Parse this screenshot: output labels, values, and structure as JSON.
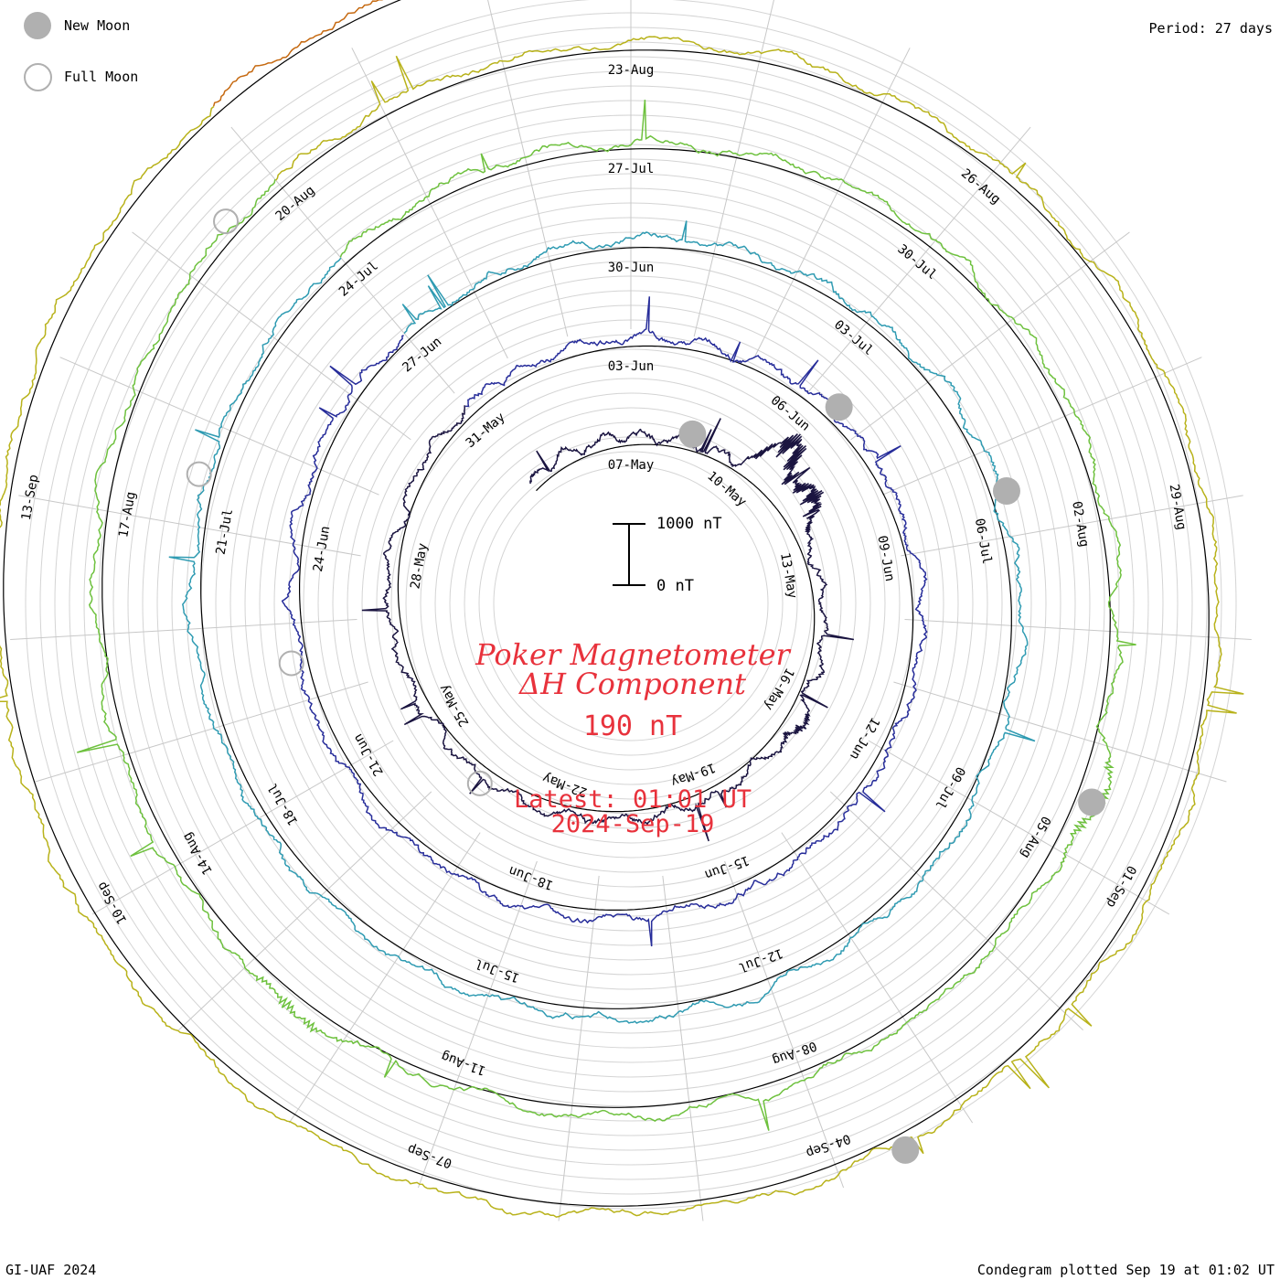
{
  "legend": {
    "new_moon": {
      "label": "New Moon",
      "icon": "new-moon-icon",
      "color": "#b0b0b0"
    },
    "full_moon": {
      "label": "Full Moon",
      "icon": "full-moon-icon",
      "color": "#b0b0b0"
    }
  },
  "period_text": "Period: 27 days",
  "footer": {
    "credit": "GI-UAF 2024",
    "plotted": "Condegram plotted Sep 19 at 01:02 UT"
  },
  "title": {
    "line1": "Poker Magnetometer",
    "line2": "ΔH Component",
    "scale_value": "190 nT",
    "latest_time": "Latest: 01:01 UT",
    "latest_date": "2024-Sep-19",
    "color": "#e8323c"
  },
  "scale_bar": {
    "top_label": "1000 nT",
    "bottom_label": "0 nT"
  },
  "chart_data": {
    "type": "line",
    "subtype": "condegram (spiral, 27-day period)",
    "period_days": 27,
    "quantity": "ΔH Component",
    "unit": "nT",
    "date_range": [
      "2024-05-04",
      "2024-09-19"
    ],
    "date_labels": [
      "07-May",
      "10-May",
      "13-May",
      "16-May",
      "19-May",
      "22-May",
      "25-May",
      "28-May",
      "31-May",
      "03-Jun",
      "06-Jun",
      "09-Jun",
      "12-Jun",
      "15-Jun",
      "18-Jun",
      "21-Jun",
      "24-Jun",
      "27-Jun",
      "30-Jun",
      "03-Jul",
      "06-Jul",
      "09-Jul",
      "12-Jul",
      "15-Jul",
      "18-Jul",
      "21-Jul",
      "24-Jul",
      "27-Jul",
      "30-Jul",
      "02-Aug",
      "05-Aug",
      "08-Aug",
      "11-Aug",
      "14-Aug",
      "17-Aug",
      "20-Aug",
      "23-Aug",
      "26-Aug",
      "29-Aug",
      "01-Sep",
      "04-Sep",
      "07-Sep",
      "10-Sep",
      "13-Sep"
    ],
    "new_moons": [
      "2024-05-08",
      "2024-06-06",
      "2024-07-05",
      "2024-08-04",
      "2024-09-03"
    ],
    "full_moons": [
      "2024-05-23",
      "2024-06-22",
      "2024-07-21",
      "2024-08-19",
      "2024-09-18"
    ],
    "storm_events": [
      {
        "date": "2024-05-10",
        "peak_nT": 1000
      },
      {
        "date": "2024-05-11",
        "peak_nT": 700
      },
      {
        "date": "2024-05-16",
        "peak_nT": 230
      },
      {
        "date": "2024-08-04",
        "peak_nT": 300
      },
      {
        "date": "2024-08-12",
        "peak_nT": 250
      }
    ],
    "grid": true,
    "colors": [
      "#1a1440",
      "#272d9a",
      "#2f9bb2",
      "#6ec13e",
      "#b8b21a",
      "#c66a12",
      "#b0140e"
    ]
  }
}
